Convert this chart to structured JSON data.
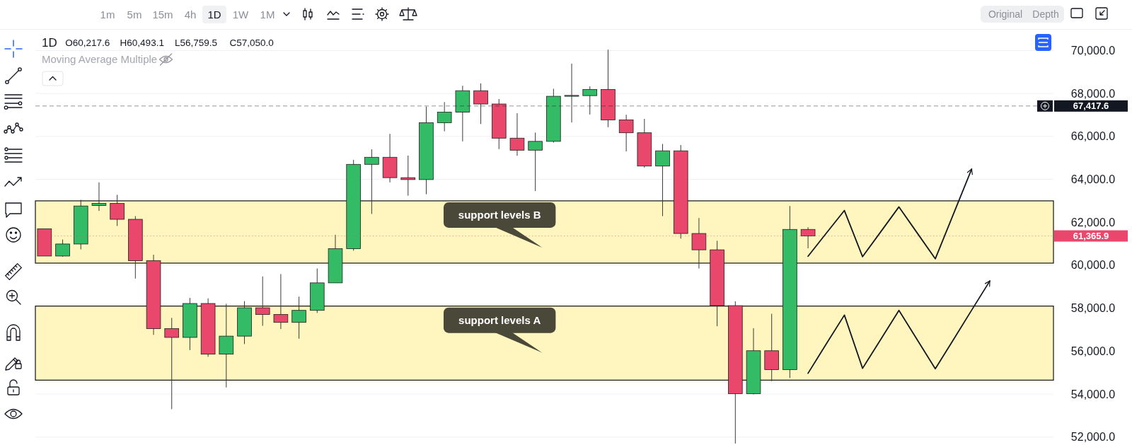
{
  "chart_data": {
    "type": "candlestick",
    "title": "1D",
    "subtitle": "Moving Average Multiple",
    "categories": [
      null,
      null,
      null,
      null,
      null,
      null,
      null,
      null,
      null,
      null,
      null,
      null,
      null,
      null,
      null,
      null,
      null,
      null,
      null,
      null,
      null,
      null,
      null,
      null,
      null,
      null,
      null,
      null,
      null,
      null,
      null,
      null,
      null,
      null,
      null,
      null,
      null,
      null,
      null,
      null,
      null,
      null,
      null,
      null,
      null,
      null,
      null,
      null,
      null,
      null,
      null,
      null,
      null,
      null,
      null,
      null
    ],
    "ohlc": [
      [
        61700,
        61700,
        60430,
        60430
      ],
      [
        60430,
        61200,
        60400,
        60990
      ],
      [
        60990,
        63050,
        60740,
        62760
      ],
      [
        62780,
        63860,
        62530,
        62880
      ],
      [
        62880,
        63280,
        61830,
        62140
      ],
      [
        62140,
        62290,
        59380,
        60210
      ],
      [
        60217.6,
        60493.1,
        56759.5,
        57050.0
      ],
      [
        57050,
        57550,
        53300,
        56640
      ],
      [
        56640,
        58480,
        56050,
        58220
      ],
      [
        58220,
        58460,
        55740,
        55860
      ],
      [
        55860,
        58210,
        54310,
        56700
      ],
      [
        56700,
        58330,
        56330,
        58020
      ],
      [
        58020,
        59480,
        57180,
        57710
      ],
      [
        57710,
        59590,
        57030,
        57340
      ],
      [
        57340,
        58540,
        56580,
        57900
      ],
      [
        57900,
        59850,
        57780,
        59180
      ],
      [
        59180,
        61420,
        59180,
        60770
      ],
      [
        60770,
        64910,
        60680,
        64700
      ],
      [
        64700,
        65400,
        62390,
        65030
      ],
      [
        65030,
        66120,
        63860,
        64080
      ],
      [
        64080,
        65110,
        63240,
        63990
      ],
      [
        63990,
        67390,
        63310,
        66640
      ],
      [
        66640,
        67600,
        66240,
        67130
      ],
      [
        67130,
        68360,
        65770,
        68130
      ],
      [
        68130,
        68470,
        66580,
        67510
      ],
      [
        67510,
        67740,
        65410,
        65920
      ],
      [
        65920,
        67080,
        65100,
        65360
      ],
      [
        65360,
        66180,
        63460,
        65770
      ],
      [
        65770,
        68220,
        65710,
        67870
      ],
      [
        67870,
        69390,
        66650,
        67910
      ],
      [
        67900,
        68330,
        67020,
        68190
      ],
      [
        68190,
        70040,
        66430,
        66770
      ],
      [
        66770,
        67010,
        65300,
        66170
      ],
      [
        66170,
        66820,
        64550,
        64620
      ],
      [
        64620,
        65650,
        62290,
        65330
      ],
      [
        65330,
        65600,
        61240,
        61480
      ],
      [
        61480,
        62200,
        59850,
        60720
      ],
      [
        60720,
        61140,
        57160,
        58120
      ],
      [
        58120,
        58320,
        51700,
        54020
      ],
      [
        54020,
        57070,
        53990,
        56020
      ],
      [
        56020,
        57740,
        54600,
        55140
      ],
      [
        55140,
        62760,
        54750,
        61670
      ],
      [
        61670,
        61770,
        60790,
        61365.9
      ],
      null,
      null,
      null,
      null,
      null,
      null,
      null,
      null,
      null,
      null,
      null,
      null,
      null
    ],
    "colors": [
      "#e9476b",
      "#33bb66",
      "#33bb66",
      "#33bb66",
      "#e9476b",
      "#e9476b",
      "#e9476b",
      "#e9476b",
      "#33bb66",
      "#e9476b",
      "#33bb66",
      "#33bb66",
      "#e9476b",
      "#e9476b",
      "#33bb66",
      "#33bb66",
      "#33bb66",
      "#33bb66",
      "#33bb66",
      "#e9476b",
      "#e9476b",
      "#33bb66",
      "#33bb66",
      "#33bb66",
      "#e9476b",
      "#e9476b",
      "#e9476b",
      "#33bb66",
      "#33bb66",
      "#33bb66",
      "#33bb66",
      "#e9476b",
      "#e9476b",
      "#e9476b",
      "#33bb66",
      "#e9476b",
      "#e9476b",
      "#e9476b",
      "#e9476b",
      "#33bb66",
      "#e9476b",
      "#33bb66",
      "#e9476b",
      null,
      null,
      null,
      null,
      null,
      null,
      null,
      null,
      null,
      null,
      null,
      null,
      null
    ],
    "series": [
      {
        "type": "line",
        "color": "#131722",
        "values": [
          null,
          null,
          null,
          null,
          null,
          null,
          null,
          null,
          null,
          null,
          null,
          null,
          null,
          null,
          null,
          null,
          null,
          null,
          null,
          null,
          null,
          null,
          null,
          null,
          null,
          null,
          null,
          null,
          null,
          null,
          null,
          null,
          null,
          null,
          null,
          null,
          null,
          null,
          null,
          null,
          null,
          null,
          60420,
          61490,
          62550,
          60400,
          61560,
          62720,
          61510,
          60300,
          62390,
          64480,
          null,
          null,
          null,
          null
        ]
      },
      {
        "type": "line",
        "color": "#131722",
        "values": [
          null,
          null,
          null,
          null,
          null,
          null,
          null,
          null,
          null,
          null,
          null,
          null,
          null,
          null,
          null,
          null,
          null,
          null,
          null,
          null,
          null,
          null,
          null,
          null,
          null,
          null,
          null,
          null,
          null,
          null,
          null,
          null,
          null,
          null,
          null,
          null,
          null,
          null,
          null,
          null,
          null,
          null,
          54970,
          56330,
          57680,
          55200,
          56550,
          57900,
          56540,
          55180,
          56540,
          57910,
          59270,
          null,
          null,
          null
        ]
      }
    ],
    "ylim": [
      51630,
      70970
    ],
    "yticks": [
      {
        "value": 52000,
        "label": "52,000.0"
      },
      {
        "value": 54000,
        "label": "54,000.0"
      },
      {
        "value": 56000,
        "label": "56,000.0"
      },
      {
        "value": 58000,
        "label": "58,000.0"
      },
      {
        "value": 60000,
        "label": "60,000.0"
      },
      {
        "value": 62000,
        "label": "62,000.0"
      },
      {
        "value": 64000,
        "label": "64,000.0"
      },
      {
        "value": 66000,
        "label": "66,000.0"
      },
      {
        "value": 68000,
        "label": "68,000.0"
      },
      {
        "value": 70000,
        "label": "70,000.0"
      }
    ],
    "grid": "y",
    "bands": [
      {
        "axis": "y",
        "from": 60100,
        "to": 63000,
        "label": "support levels B",
        "color": "#fff5be"
      },
      {
        "axis": "y",
        "from": 54650,
        "to": 58100,
        "label": "support levels A",
        "color": "#fff5be"
      }
    ],
    "ref_lines": [
      {
        "axis": "y",
        "value": 67417.6,
        "label": "67,417.6",
        "color": "#131722",
        "line_style": "dashed"
      },
      {
        "axis": "y",
        "value": 61365.9,
        "label": "61,365.9",
        "color": "#e9476b",
        "line_style": "dotted"
      }
    ],
    "annotations": [
      "O60,217.6",
      "H60,493.1",
      "L56,759.5",
      "C57,050.0",
      "1m",
      "5m",
      "15m",
      "4h",
      "1D",
      "1W",
      "1M",
      "Original",
      "Depth"
    ]
  }
}
